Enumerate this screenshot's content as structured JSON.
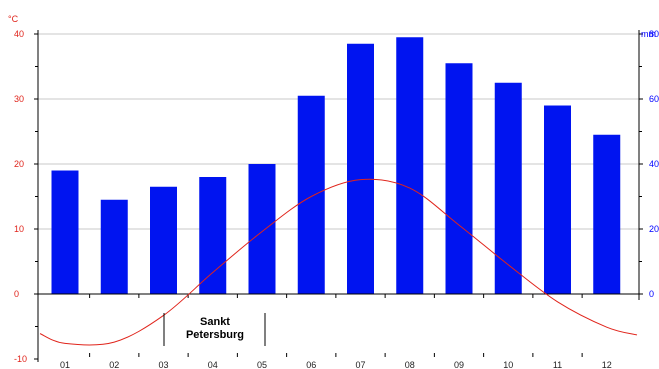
{
  "chart_data": {
    "type": "bar+line",
    "title": "",
    "annotation": [
      "Sankt",
      "Petersburg"
    ],
    "categories": [
      "01",
      "02",
      "03",
      "04",
      "05",
      "06",
      "07",
      "08",
      "09",
      "10",
      "11",
      "12"
    ],
    "left_axis": {
      "unit": "°C",
      "ticks": [
        "40",
        "30",
        "20",
        "10",
        "0",
        "-10"
      ],
      "ylim": [
        -10,
        40
      ],
      "color": "#e0241b"
    },
    "right_axis": {
      "unit": "mm",
      "ticks": [
        "80",
        "60",
        "40",
        "20",
        "0"
      ],
      "ylim": [
        -20,
        80
      ],
      "color": "#0000ff"
    },
    "series": [
      {
        "kind": "bar",
        "axis": "right",
        "color": "#0014f0",
        "values": [
          38,
          29,
          33,
          36,
          40,
          61,
          77,
          79,
          71,
          65,
          58,
          49
        ]
      },
      {
        "kind": "line",
        "axis": "left",
        "color": "#e0241b",
        "values": [
          -7.6,
          -7.4,
          -3.3,
          3.3,
          9.6,
          15.0,
          17.6,
          16.3,
          10.6,
          4.5,
          -1.2,
          -5.1
        ]
      }
    ],
    "grid": true,
    "legend": "none"
  }
}
